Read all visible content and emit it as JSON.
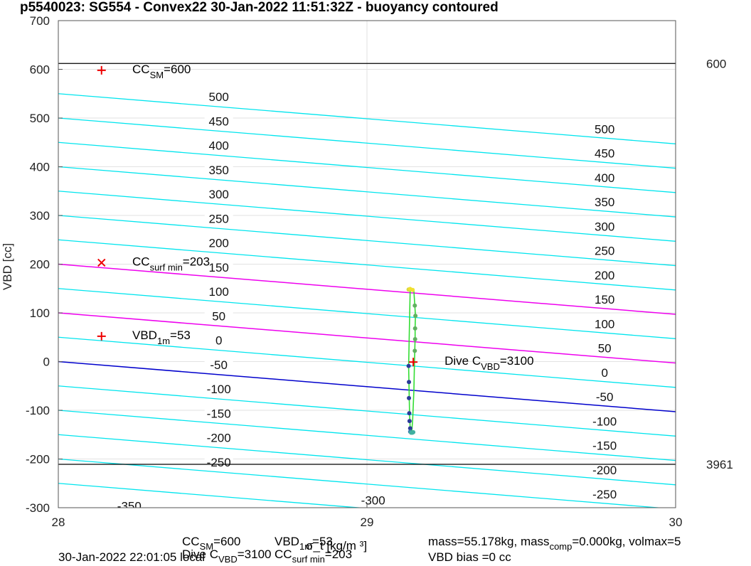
{
  "chart_data": {
    "type": "line",
    "title": "p5540023: SG554 - Convex22 30-Jan-2022 11:51:32Z - buoyancy contoured",
    "xlabel": "σ_t [kg/m ³]",
    "ylabel": "VBD [cc]",
    "xlim": [
      28,
      30
    ],
    "ylim": [
      -300,
      700
    ],
    "xticks": [
      "28",
      "29",
      "30"
    ],
    "yticks": [
      "-300",
      "-200",
      "-100",
      "0",
      "100",
      "200",
      "300",
      "400",
      "500",
      "600",
      "700"
    ],
    "grid": true,
    "contour_slope_per_sigma": -51.5,
    "contours_at_x28": [
      {
        "level": -350,
        "color": "#00e5ee",
        "label": "-350",
        "label_positions": [
          {
            "x": 28.23,
            "y": -298
          }
        ]
      },
      {
        "level": -300,
        "color": "#00e5ee",
        "label": "-300",
        "label_positions": [
          {
            "x": 29.02,
            "y": -286
          }
        ]
      },
      {
        "level": -250,
        "color": "#00e5ee",
        "label": "-250",
        "label_positions": [
          {
            "x": 28.52,
            "y": -208
          },
          {
            "x": 29.77,
            "y": -274
          }
        ]
      },
      {
        "level": -200,
        "color": "#00e5ee",
        "label": "-200",
        "label_positions": [
          {
            "x": 28.52,
            "y": -158
          },
          {
            "x": 29.77,
            "y": -224
          }
        ]
      },
      {
        "level": -150,
        "color": "#00e5ee",
        "label": "-150",
        "label_positions": [
          {
            "x": 28.52,
            "y": -108
          },
          {
            "x": 29.77,
            "y": -174
          }
        ]
      },
      {
        "level": -100,
        "color": "#00e5ee",
        "label": "-100",
        "label_positions": [
          {
            "x": 28.52,
            "y": -58
          },
          {
            "x": 29.77,
            "y": -124
          }
        ]
      },
      {
        "level": -50,
        "color": "#00e5ee",
        "label": "-50",
        "label_positions": [
          {
            "x": 28.52,
            "y": -8
          },
          {
            "x": 29.77,
            "y": -74
          }
        ]
      },
      {
        "level": 0,
        "color": "#0000cc",
        "label": "0",
        "label_positions": [
          {
            "x": 28.52,
            "y": 42
          },
          {
            "x": 29.77,
            "y": -24
          }
        ]
      },
      {
        "level": 50,
        "color": "#00e5ee",
        "label": "50",
        "label_positions": [
          {
            "x": 28.52,
            "y": 92
          },
          {
            "x": 29.77,
            "y": 26
          }
        ]
      },
      {
        "level": 100,
        "color": "#ee00ee",
        "label": "100",
        "label_positions": [
          {
            "x": 28.52,
            "y": 142
          },
          {
            "x": 29.77,
            "y": 76
          }
        ]
      },
      {
        "level": 150,
        "color": "#00e5ee",
        "label": "150",
        "label_positions": [
          {
            "x": 28.52,
            "y": 192
          },
          {
            "x": 29.77,
            "y": 126
          }
        ]
      },
      {
        "level": 200,
        "color": "#ee00ee",
        "label": "200",
        "label_positions": [
          {
            "x": 28.52,
            "y": 242
          },
          {
            "x": 29.77,
            "y": 176
          }
        ]
      },
      {
        "level": 250,
        "color": "#00e5ee",
        "label": "250",
        "label_positions": [
          {
            "x": 28.52,
            "y": 292
          },
          {
            "x": 29.77,
            "y": 226
          }
        ]
      },
      {
        "level": 300,
        "color": "#00e5ee",
        "label": "300",
        "label_positions": [
          {
            "x": 28.52,
            "y": 342
          },
          {
            "x": 29.77,
            "y": 276
          }
        ]
      },
      {
        "level": 350,
        "color": "#00e5ee",
        "label": "350",
        "label_positions": [
          {
            "x": 28.52,
            "y": 392
          },
          {
            "x": 29.77,
            "y": 326
          }
        ]
      },
      {
        "level": 400,
        "color": "#00e5ee",
        "label": "400",
        "label_positions": [
          {
            "x": 28.52,
            "y": 442
          },
          {
            "x": 29.77,
            "y": 376
          }
        ]
      },
      {
        "level": 450,
        "color": "#00e5ee",
        "label": "450",
        "label_positions": [
          {
            "x": 28.52,
            "y": 492
          },
          {
            "x": 29.77,
            "y": 426
          }
        ]
      },
      {
        "level": 500,
        "color": "#00e5ee",
        "label": "500",
        "label_positions": [
          {
            "x": 28.52,
            "y": 542
          },
          {
            "x": 29.77,
            "y": 476
          }
        ]
      },
      {
        "level": 550,
        "color": "#00e5ee",
        "label": "",
        "label_positions": []
      }
    ],
    "hlines": [
      {
        "y": 612,
        "label": "600",
        "color": "#000000"
      },
      {
        "y": -211,
        "label": "3961",
        "color": "#000000"
      }
    ],
    "markers": [
      {
        "x": 28.14,
        "y": 598,
        "symbol": "+",
        "color": "#ee0000",
        "label": "CC",
        "sub": "SM",
        "value": "=600"
      },
      {
        "x": 28.14,
        "y": 203,
        "symbol": "x",
        "color": "#ee0000",
        "label": "CC",
        "sub": "surf min",
        "value": "=203"
      },
      {
        "x": 28.14,
        "y": 52,
        "symbol": "+",
        "color": "#ee0000",
        "label": "VBD",
        "sub": "1m",
        "value": "=53"
      },
      {
        "x": 29.15,
        "y": -1,
        "symbol": "+",
        "color": "#ee0000",
        "label": "Dive C",
        "sub": "VBD",
        "value": "=3100"
      }
    ],
    "series": [
      {
        "kind": "profile-up",
        "color": "#33dd33",
        "x": [
          29.145,
          29.148,
          29.15,
          29.152,
          29.153,
          29.154,
          29.155,
          29.156,
          29.156,
          29.157,
          29.155,
          29.152
        ],
        "y": [
          -145,
          -120,
          -90,
          -60,
          -30,
          0,
          25,
          50,
          70,
          95,
          115,
          145
        ]
      },
      {
        "kind": "profile-down",
        "color": "#33dd33",
        "x": [
          29.14,
          29.135,
          29.136,
          29.137,
          29.138,
          29.139,
          29.14,
          29.141,
          29.143
        ],
        "y": [
          148,
          -10,
          -42,
          -75,
          -106,
          -122,
          -137,
          -143,
          -146
        ]
      }
    ],
    "points": [
      {
        "x": 29.135,
        "y": -9,
        "color": "#2a3a9a"
      },
      {
        "x": 29.136,
        "y": -42,
        "color": "#2a3a9a"
      },
      {
        "x": 29.136,
        "y": -75,
        "color": "#2a3a9a"
      },
      {
        "x": 29.137,
        "y": -106,
        "color": "#2a3a9a"
      },
      {
        "x": 29.138,
        "y": -122,
        "color": "#2a3a9a"
      },
      {
        "x": 29.14,
        "y": -137,
        "color": "#2a3a9a"
      },
      {
        "x": 29.14,
        "y": -144,
        "color": "#3c7cb0"
      },
      {
        "x": 29.143,
        "y": -146,
        "color": "#40b0a0"
      },
      {
        "x": 29.147,
        "y": -146,
        "color": "#40b0a0"
      },
      {
        "x": 29.15,
        "y": -145,
        "color": "#40b0a0"
      },
      {
        "x": 29.155,
        "y": 22,
        "color": "#60b060"
      },
      {
        "x": 29.156,
        "y": 46,
        "color": "#60b060"
      },
      {
        "x": 29.156,
        "y": 68,
        "color": "#60b060"
      },
      {
        "x": 29.157,
        "y": 94,
        "color": "#60b060"
      },
      {
        "x": 29.155,
        "y": 115,
        "color": "#60b060"
      },
      {
        "x": 29.135,
        "y": 148,
        "color": "#d8d840"
      },
      {
        "x": 29.14,
        "y": 149,
        "color": "#f0e030"
      },
      {
        "x": 29.148,
        "y": 147,
        "color": "#f0e030"
      }
    ],
    "right_labels": [
      "600",
      "3961"
    ]
  },
  "footer": {
    "cc_sm": "CC",
    "cc_sm_sub": "SM",
    "cc_sm_val": "=600",
    "vbd_1m": "VBD",
    "vbd_1m_sub": "1m",
    "vbd_1m_val": "=53",
    "mass": "mass=55.178kg, mass",
    "mass_comp_sub": "comp",
    "mass_comp_val": "=0.000kg, volmax=5",
    "date": "30-Jan-2022 22:01:05 local",
    "dive_c": "Dive C",
    "dive_c_sub": "VBD",
    "dive_c_val": "=3100",
    "cc_surf": "CC",
    "cc_surf_sub": "surf min",
    "cc_surf_val": "=203",
    "vbd_bias": "VBD bias =0 cc"
  }
}
